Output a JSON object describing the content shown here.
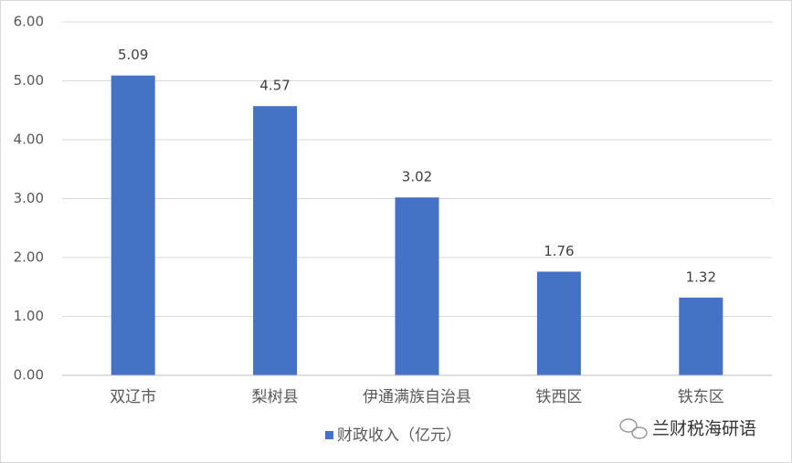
{
  "chart_data": {
    "type": "bar",
    "categories": [
      "双辽市",
      "梨树县",
      "伊通满族自治县",
      "铁西区",
      "铁东区"
    ],
    "series": [
      {
        "name": "财政收入（亿元）",
        "color": "#4472c4",
        "values": [
          5.09,
          4.57,
          3.02,
          1.76,
          1.32
        ]
      }
    ],
    "ylim": [
      0,
      6
    ],
    "yticks": [
      {
        "value": 0,
        "label": "0.00"
      },
      {
        "value": 1,
        "label": "1.00"
      },
      {
        "value": 2,
        "label": "2.00"
      },
      {
        "value": 3,
        "label": "3.00"
      },
      {
        "value": 4,
        "label": "4.00"
      },
      {
        "value": 5,
        "label": "5.00"
      },
      {
        "value": 6,
        "label": "6.00"
      }
    ],
    "grid": true,
    "legend": "bottom",
    "watermark": "兰财税海研语"
  }
}
